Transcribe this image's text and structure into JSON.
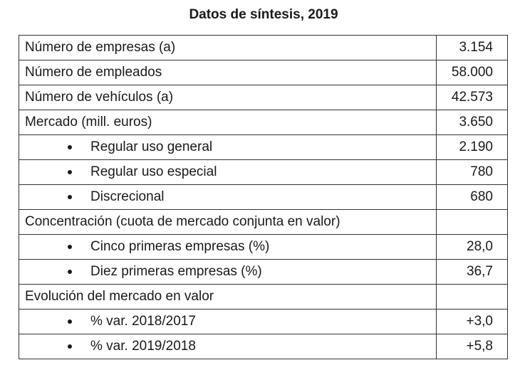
{
  "title": "Datos de síntesis, 2019",
  "rows": [
    {
      "label": "Número de empresas (a)",
      "value": "3.154"
    },
    {
      "label": "Número de empleados",
      "value": "58.000"
    },
    {
      "label": "Número de vehículos (a)",
      "value": "42.573"
    },
    {
      "label": "Mercado (mill. euros)",
      "value": "3.650"
    },
    {
      "label": "Regular uso general",
      "value": "2.190"
    },
    {
      "label": "Regular uso especial",
      "value": "780"
    },
    {
      "label": "Discrecional",
      "value": "680"
    },
    {
      "label": "Concentración (cuota de mercado conjunta en valor)",
      "value": ""
    },
    {
      "label": "Cinco primeras empresas (%)",
      "value": "28,0"
    },
    {
      "label": "Diez primeras empresas (%)",
      "value": "36,7"
    },
    {
      "label": "Evolución del mercado en valor",
      "value": ""
    },
    {
      "label": "% var. 2018/2017",
      "value": "+3,0"
    },
    {
      "label": "% var. 2019/2018",
      "value": "+5,8"
    }
  ]
}
